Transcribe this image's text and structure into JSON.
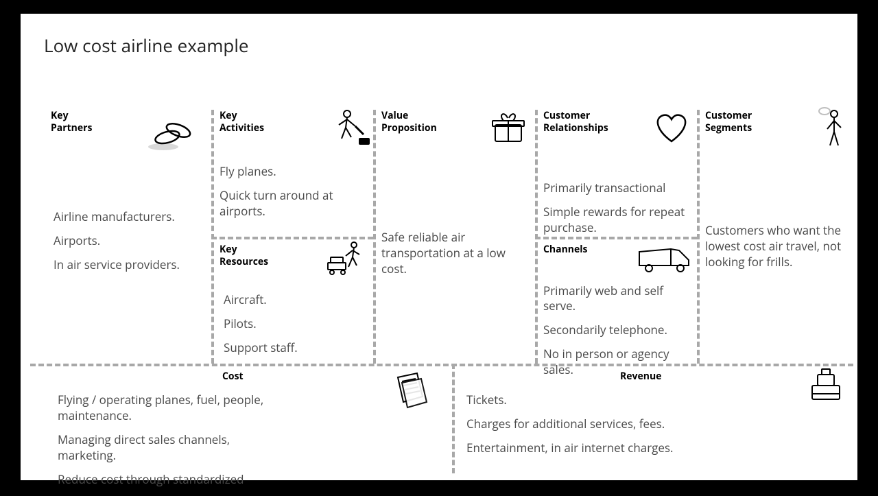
{
  "title": "Low cost airline example",
  "layout": {
    "slide_width": 1220,
    "slide_height": 680,
    "background": "#ffffff",
    "frame_color": "#000000",
    "divider_color": "#a8a8a8",
    "divider_dash": "4px dashed",
    "title_fontsize": 26,
    "label_fontsize": 14,
    "body_fontsize": 17,
    "body_color": "#4a4a4a"
  },
  "blocks": {
    "key_partners": {
      "label": "Key\nPartners",
      "icon": "linked-rings",
      "items": [
        "Airline manufacturers.",
        "Airports.",
        "In air service providers."
      ]
    },
    "key_activities": {
      "label": "Key\nActivities",
      "icon": "worker-hammer",
      "items": [
        "Fly planes.",
        "Quick turn around at airports."
      ]
    },
    "key_resources": {
      "label": "Key\nResources",
      "icon": "worker-cart",
      "items": [
        "Aircraft.",
        "Pilots.",
        "Support staff."
      ]
    },
    "value_proposition": {
      "label": "Value\nProposition",
      "icon": "gift-box",
      "items": [
        "Safe reliable air transportation at a low cost."
      ]
    },
    "customer_relationships": {
      "label": "Customer\nRelationships",
      "icon": "heart",
      "items": [
        "Primarily transactional",
        "Simple rewards for repeat purchase."
      ]
    },
    "channels": {
      "label": "Channels",
      "icon": "truck",
      "items": [
        "Primarily web and self serve.",
        "Secondarily telephone.",
        "No in person or agency sales."
      ]
    },
    "customer_segments": {
      "label": "Customer\nSegments",
      "icon": "person-standing",
      "items": [
        "Customers who want the lowest cost air travel, not looking for frills."
      ]
    },
    "cost": {
      "label": "Cost",
      "icon": "papers",
      "items": [
        "Flying / operating planes, fuel, people, maintenance.",
        "Managing direct sales channels, marketing.",
        "Reduce cost through standardized"
      ]
    },
    "revenue": {
      "label": "Revenue",
      "icon": "cash-register",
      "items": [
        "Tickets.",
        "Charges for additional services, fees.",
        "Entertainment, in air internet charges."
      ]
    }
  }
}
